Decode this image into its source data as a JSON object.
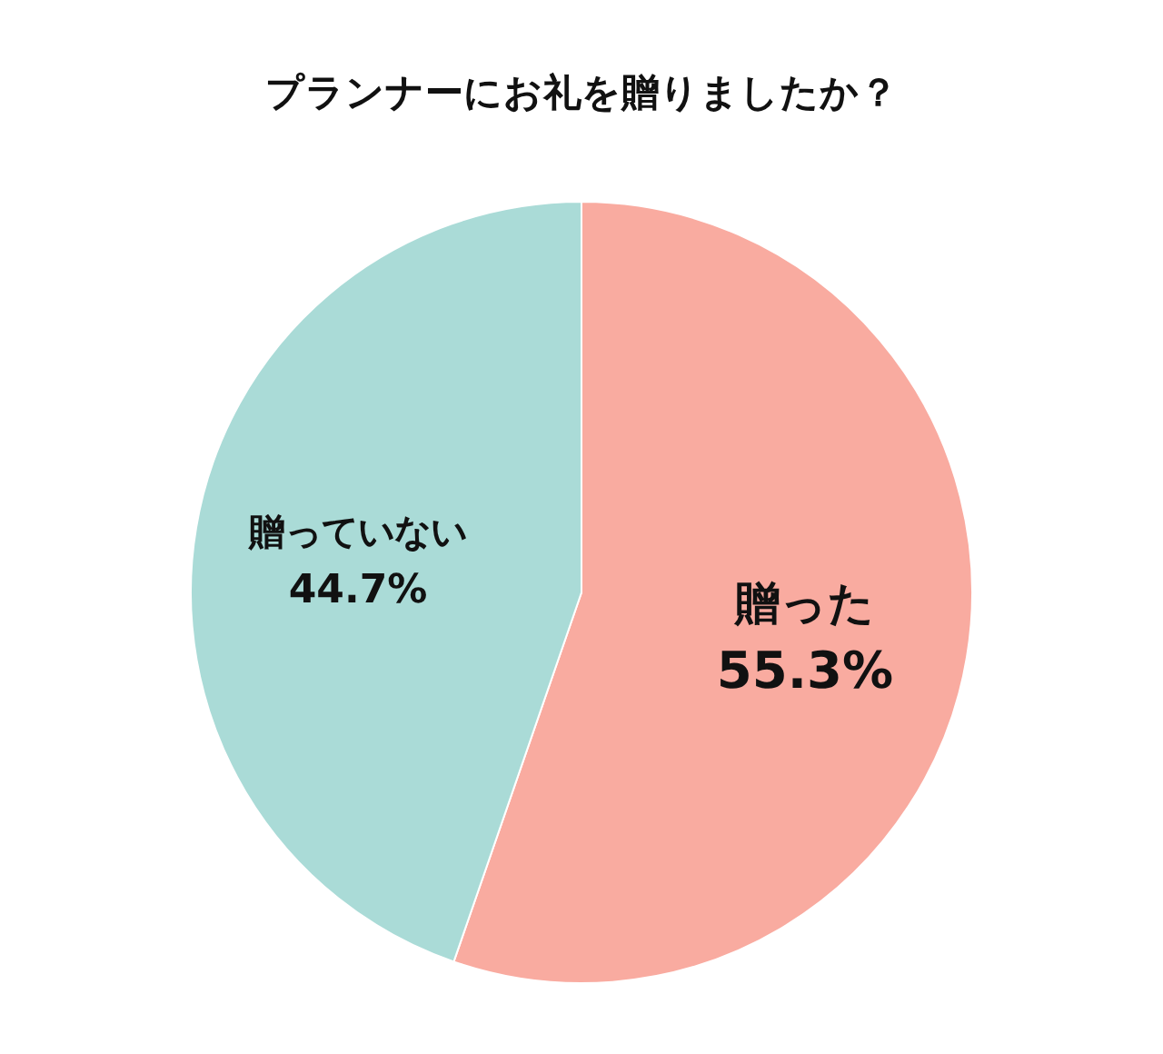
{
  "chart_data": {
    "type": "pie",
    "title": "プランナーにお礼を贈りましたか？",
    "categories": [
      "贈った",
      "贈っていない"
    ],
    "values": [
      55.3,
      44.7
    ],
    "colors": [
      "#f9aba0",
      "#aadbd7"
    ],
    "value_labels": [
      "55.3%",
      "44.7%"
    ]
  }
}
